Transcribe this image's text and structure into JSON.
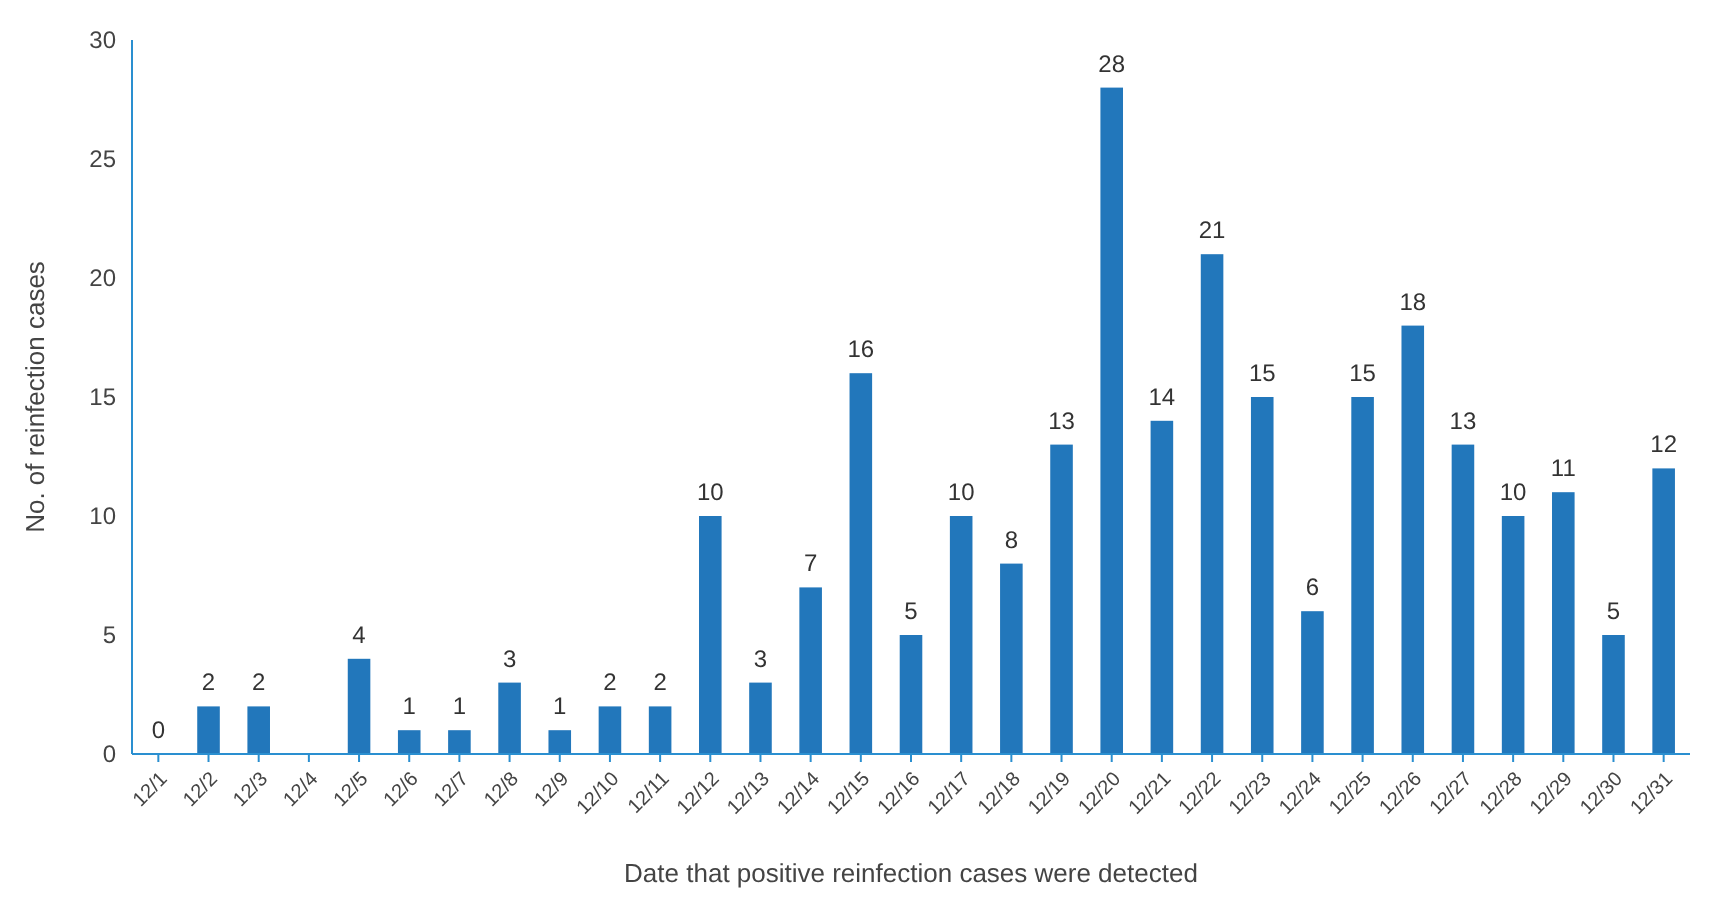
{
  "chart_data": {
    "type": "bar",
    "xlabel": "Date that positive reinfection cases were detected",
    "ylabel": "No. of reinfection cases",
    "categories": [
      "12/1",
      "12/2",
      "12/3",
      "12/4",
      "12/5",
      "12/6",
      "12/7",
      "12/8",
      "12/9",
      "12/10",
      "12/11",
      "12/12",
      "12/13",
      "12/14",
      "12/15",
      "12/16",
      "12/17",
      "12/18",
      "12/19",
      "12/20",
      "12/21",
      "12/22",
      "12/23",
      "12/24",
      "12/25",
      "12/26",
      "12/27",
      "12/28",
      "12/29",
      "12/30",
      "12/31"
    ],
    "values": [
      0,
      2,
      2,
      null,
      4,
      1,
      1,
      3,
      1,
      2,
      2,
      10,
      3,
      7,
      16,
      5,
      10,
      8,
      13,
      28,
      14,
      21,
      15,
      6,
      15,
      18,
      13,
      10,
      11,
      5,
      12
    ],
    "color": "#2277bb",
    "ylim": [
      0,
      30
    ],
    "yticks": [
      0,
      5,
      10,
      15,
      20,
      25,
      30
    ],
    "data_labels": true,
    "grid": false
  }
}
